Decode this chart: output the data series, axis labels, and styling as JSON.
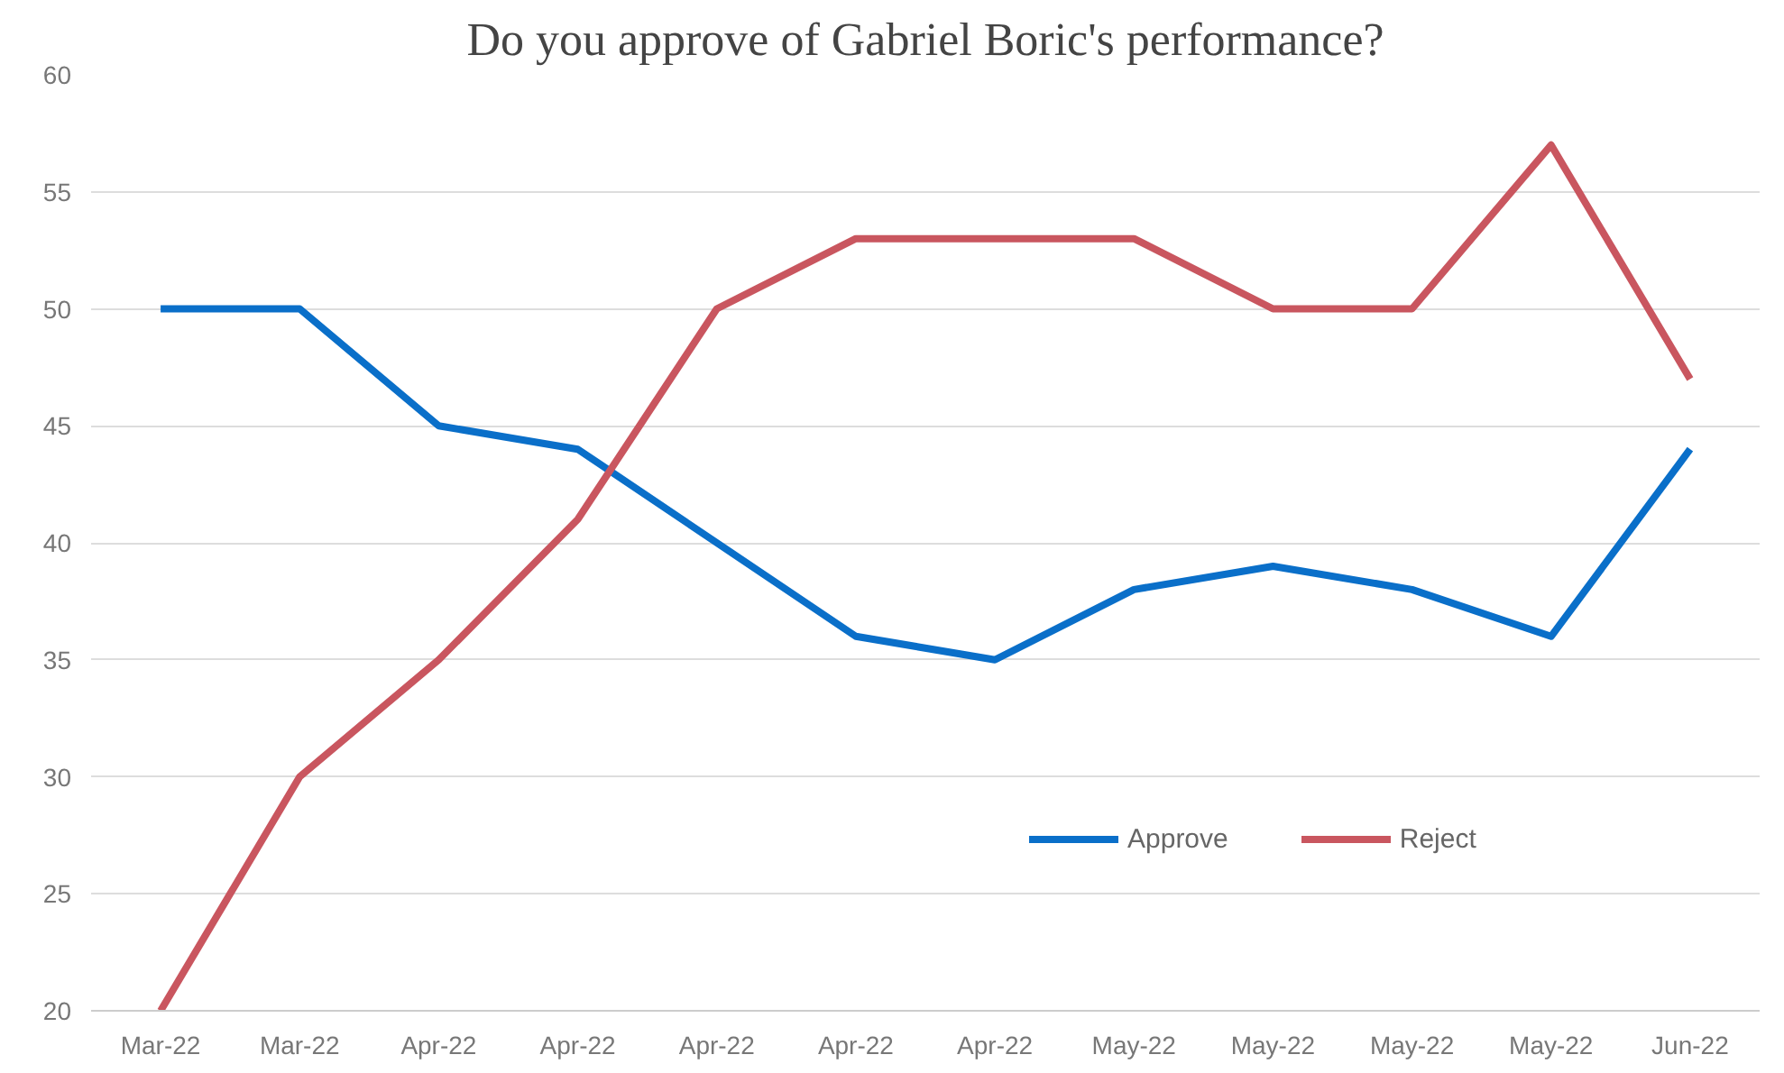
{
  "chart_data": {
    "type": "line",
    "title": "Do you approve of Gabriel Boric's performance?",
    "categories": [
      "Mar-22",
      "Mar-22",
      "Apr-22",
      "Apr-22",
      "Apr-22",
      "Apr-22",
      "Apr-22",
      "May-22",
      "May-22",
      "May-22",
      "May-22",
      "Jun-22"
    ],
    "series": [
      {
        "name": "Approve",
        "color": "#0a6fc9",
        "values": [
          50,
          50,
          45,
          44,
          40,
          36,
          35,
          38,
          39,
          38,
          36,
          44
        ]
      },
      {
        "name": "Reject",
        "color": "#c9565f",
        "values": [
          20,
          30,
          35,
          41,
          50,
          53,
          53,
          53,
          50,
          50,
          57,
          47
        ]
      }
    ],
    "ylim": [
      20,
      60
    ],
    "yticks": [
      20,
      25,
      30,
      35,
      40,
      45,
      50,
      55,
      60
    ],
    "grid": "y",
    "legend": "bottom right",
    "line_style": "solid",
    "marker": "none"
  }
}
